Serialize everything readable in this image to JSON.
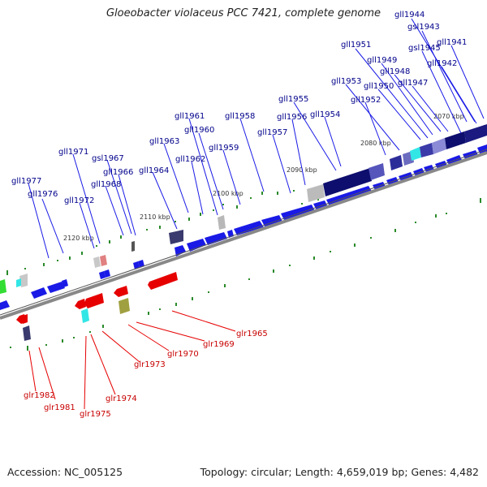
{
  "title": "Gloeobacter violaceus PCC 7421, complete genome",
  "footer": {
    "accession": "Accession: NC_005125",
    "summary": "Topology: circular; Length: 4,659,019 bp; Genes: 4,482"
  },
  "colors": {
    "forward_gene": "#1a1ae6",
    "reverse_gene": "#e60000",
    "forward_label": "#00008b",
    "reverse_label": "#c80000",
    "backbone": "#888888",
    "tick": "#2a8a2a"
  },
  "kbp_labels": [
    "2070 kbp",
    "2080 kbp",
    "2090 kbp",
    "2100 kbp",
    "2110 kbp",
    "2120 kbp"
  ],
  "forward_labels": [
    "gll1944",
    "gsl1943",
    "gll1941",
    "gll1951",
    "gsl1945",
    "gll1949",
    "gll1942",
    "gll1948",
    "gll1953",
    "gll1950",
    "gll1947",
    "gll1955",
    "gll1952",
    "gll1961",
    "gll1958",
    "gll1956",
    "gll1954",
    "gll1960",
    "gll1957",
    "gll1963",
    "gll1959",
    "gll1971",
    "gsl1967",
    "gll1962",
    "gll1966",
    "gll1964",
    "gll1977",
    "gll1968",
    "gll1976",
    "gll1972"
  ],
  "reverse_labels": [
    "glr1965",
    "glr1969",
    "glr1970",
    "glr1973",
    "glr1974",
    "glr1982",
    "glr1981",
    "glr1975"
  ]
}
